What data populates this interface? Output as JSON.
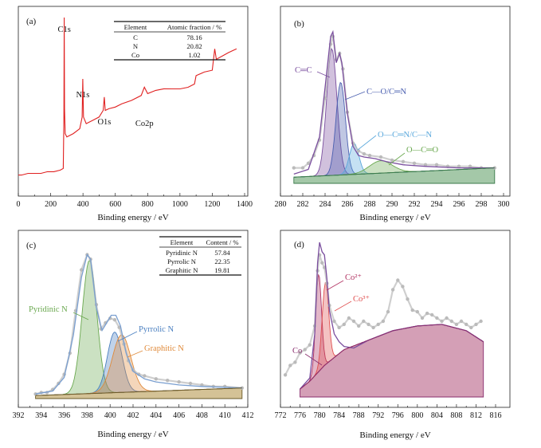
{
  "colors": {
    "survey": "#e02020",
    "envelope": "#7a4e9e",
    "raw_points": "#bbbbbb",
    "c_cc": "#7a4e9e",
    "c_co": "#4a5fb0",
    "c_ocn": "#5aa8dc",
    "c_occ": "#6aa84f",
    "n_pyridinic": "#6aa84f",
    "n_pyrrolic": "#4a7fc0",
    "n_graphitic": "#e08a3a",
    "co_2plus": "#b03060",
    "co_3plus": "#e05050",
    "co_bg": "#8a2e6e",
    "n_envelope": "#7a9fd0"
  },
  "chart_data": [
    {
      "panel": "(a)",
      "type": "line",
      "xlabel": "Binding energy / eV",
      "ylabel": "",
      "xlim": [
        0,
        1400
      ],
      "xticks": [
        0,
        200,
        400,
        600,
        800,
        1000,
        1200,
        1400
      ],
      "peak_labels": [
        {
          "text": "C1s",
          "x": 284
        },
        {
          "text": "N1s",
          "x": 399
        },
        {
          "text": "O1s",
          "x": 532
        },
        {
          "text": "Co2p",
          "x": 780
        }
      ],
      "series": [
        {
          "x": [
            0,
            20,
            60,
            100,
            140,
            180,
            220,
            260,
            278,
            282,
            284,
            286,
            290,
            300,
            340,
            380,
            395,
            399,
            403,
            420,
            460,
            500,
            525,
            532,
            538,
            560,
            600,
            640,
            700,
            760,
            780,
            800,
            850,
            900,
            950,
            1000,
            1050,
            1090,
            1100,
            1150,
            1200,
            1215,
            1225,
            1260,
            1300,
            1350
          ],
          "values": [
            5,
            5,
            6,
            6,
            6,
            7,
            7,
            8,
            9,
            40,
            100,
            45,
            30,
            28,
            30,
            33,
            40,
            63,
            40,
            36,
            38,
            40,
            44,
            52,
            44,
            45,
            46,
            48,
            50,
            53,
            58,
            54,
            55,
            56,
            57,
            58,
            59,
            60,
            64,
            66,
            68,
            82,
            76,
            77,
            78,
            80
          ]
        }
      ],
      "table": {
        "headers": [
          "Element",
          "Atomic fraction / %"
        ],
        "rows": [
          [
            "C",
            "78.16"
          ],
          [
            "N",
            "20.82"
          ],
          [
            "Co",
            "1.02"
          ]
        ]
      }
    },
    {
      "panel": "(b)",
      "type": "line",
      "xlabel": "Binding energy / eV",
      "ylabel": "",
      "xlim": [
        280,
        300
      ],
      "xticks": [
        280,
        282,
        284,
        286,
        288,
        290,
        292,
        294,
        296,
        298,
        300
      ],
      "background": {
        "x": [
          281.2,
          299.2
        ],
        "values": [
          4,
          10
        ]
      },
      "envelope": {
        "x": [
          281.2,
          282.5,
          283.5,
          284.0,
          284.5,
          284.7,
          285.0,
          285.3,
          285.5,
          286.0,
          286.5,
          287.0,
          287.5,
          288.5,
          289.5,
          291,
          293,
          296,
          299.2
        ],
        "values": [
          6,
          9,
          30,
          62,
          95,
          98,
          78,
          84,
          78,
          45,
          24,
          18,
          17,
          16,
          14,
          12,
          11,
          10,
          10
        ]
      },
      "raw_points": {
        "x": [
          281.2,
          282,
          282.5,
          283,
          283.5,
          284,
          284.5,
          284.7,
          285,
          285.3,
          285.6,
          286,
          286.5,
          287,
          287.5,
          288,
          289,
          290,
          291,
          292,
          293,
          294,
          295,
          296,
          297,
          298,
          299.2
        ],
        "values": [
          10,
          10,
          13,
          18,
          28,
          55,
          90,
          95,
          80,
          84,
          74,
          46,
          26,
          21,
          19,
          18,
          17,
          15,
          14,
          13,
          12,
          12,
          11,
          11,
          11,
          10,
          10
        ]
      },
      "components": [
        {
          "name": "C═C",
          "center": 284.6,
          "height": 82,
          "fwhm": 1.1
        },
        {
          "name": "C—O/C═N",
          "center": 285.4,
          "height": 60,
          "fwhm": 1.0
        },
        {
          "name": "O—C═N/C—N",
          "center": 286.6,
          "height": 20,
          "fwhm": 1.0
        },
        {
          "name": "O—C═O",
          "center": 289.0,
          "height": 8,
          "fwhm": 2.4
        }
      ],
      "labels": [
        "C═C",
        "C—O/C═N",
        "O—C═N/C—N",
        "O—C═O"
      ]
    },
    {
      "panel": "(c)",
      "type": "line",
      "xlabel": "Binding energy / eV",
      "ylabel": "",
      "xlim": [
        392,
        412
      ],
      "xticks": [
        392,
        394,
        396,
        398,
        400,
        402,
        404,
        406,
        408,
        410,
        412
      ],
      "background": {
        "x": [
          393.5,
          411.5
        ],
        "values": [
          2,
          7
        ]
      },
      "envelope": {
        "x": [
          393.5,
          395,
          396,
          396.8,
          397.5,
          398.0,
          398.3,
          398.8,
          399.3,
          399.7,
          400.1,
          400.5,
          400.9,
          401.4,
          402,
          403,
          404,
          406,
          408,
          411.5
        ],
        "values": [
          3,
          5,
          14,
          42,
          80,
          95,
          92,
          60,
          45,
          50,
          55,
          55,
          48,
          30,
          18,
          13,
          11,
          9,
          8,
          7
        ]
      },
      "raw_points": {
        "x": [
          393.5,
          394,
          394.5,
          395,
          395.5,
          396,
          396.5,
          397,
          397.5,
          398,
          398.3,
          398.8,
          399.2,
          399.6,
          400,
          400.4,
          400.8,
          401.2,
          401.6,
          402,
          402.5,
          403,
          404,
          405,
          406,
          407,
          408,
          409,
          410,
          411.5
        ],
        "values": [
          3,
          4,
          4,
          6,
          10,
          16,
          30,
          58,
          85,
          95,
          92,
          62,
          46,
          50,
          53,
          52,
          47,
          36,
          25,
          19,
          16,
          15,
          13,
          12,
          11,
          10,
          9,
          8,
          8,
          7
        ]
      },
      "components": [
        {
          "name": "Pyridinic N",
          "center": 398.2,
          "height": 88,
          "fwhm": 1.5
        },
        {
          "name": "Pyrrolic N",
          "center": 400.4,
          "height": 40,
          "fwhm": 1.5
        },
        {
          "name": "Graphitic N",
          "center": 401.0,
          "height": 38,
          "fwhm": 1.9
        }
      ],
      "labels": [
        "Pyridinic N",
        "Pyrrolic N",
        "Graphitic N"
      ],
      "table": {
        "headers": [
          "Element",
          "Content / %"
        ],
        "rows": [
          [
            "Pyridinic N",
            "57.84"
          ],
          [
            "Pyrrolic N",
            "22.35"
          ],
          [
            "Graphitic N",
            "19.81"
          ]
        ]
      }
    },
    {
      "panel": "(d)",
      "type": "line",
      "xlabel": "Binding energy / eV",
      "ylabel": "",
      "xlim": [
        772,
        816
      ],
      "xticks": [
        772,
        776,
        780,
        784,
        788,
        792,
        796,
        800,
        804,
        808,
        812,
        816
      ],
      "background": {
        "x": [
          776,
          778,
          781,
          785,
          790,
          795,
          800,
          805,
          810,
          813.5
        ],
        "values": [
          5,
          10,
          20,
          30,
          36,
          42,
          45,
          46,
          42,
          35
        ]
      },
      "envelope": {
        "x": [
          776,
          778,
          779,
          779.6,
          780.0,
          780.5,
          781.0,
          781.5,
          782.0,
          783,
          784,
          785,
          787,
          790,
          795,
          800,
          805,
          810,
          813.5
        ],
        "values": [
          5,
          12,
          40,
          85,
          98,
          92,
          90,
          75,
          55,
          40,
          35,
          32,
          31,
          36,
          42,
          45,
          46,
          42,
          35
        ]
      },
      "raw_points": {
        "x": [
          773,
          774,
          775,
          776,
          777,
          778,
          779,
          779.6,
          780,
          780.5,
          781,
          781.5,
          782,
          783,
          784,
          785,
          786,
          787,
          788,
          789,
          790,
          791,
          792,
          793,
          794,
          795,
          796,
          797,
          798,
          799,
          800,
          801,
          802,
          803,
          804,
          805,
          806,
          807,
          808,
          809,
          810,
          811,
          812,
          813
        ],
        "values": [
          14,
          20,
          22,
          28,
          30,
          33,
          45,
          80,
          90,
          85,
          82,
          72,
          58,
          48,
          44,
          46,
          50,
          48,
          45,
          48,
          46,
          44,
          46,
          48,
          54,
          68,
          74,
          70,
          62,
          55,
          54,
          50,
          53,
          52,
          50,
          48,
          50,
          48,
          46,
          48,
          46,
          44,
          46,
          48
        ]
      },
      "components": [
        {
          "name": "Co²⁺",
          "center": 779.8,
          "height": 62,
          "fwhm": 1.4
        },
        {
          "name": "Co³⁺",
          "center": 781.2,
          "height": 52,
          "fwhm": 1.6
        }
      ],
      "labels": [
        "Co",
        "Co²⁺",
        "Co³⁺"
      ]
    }
  ]
}
